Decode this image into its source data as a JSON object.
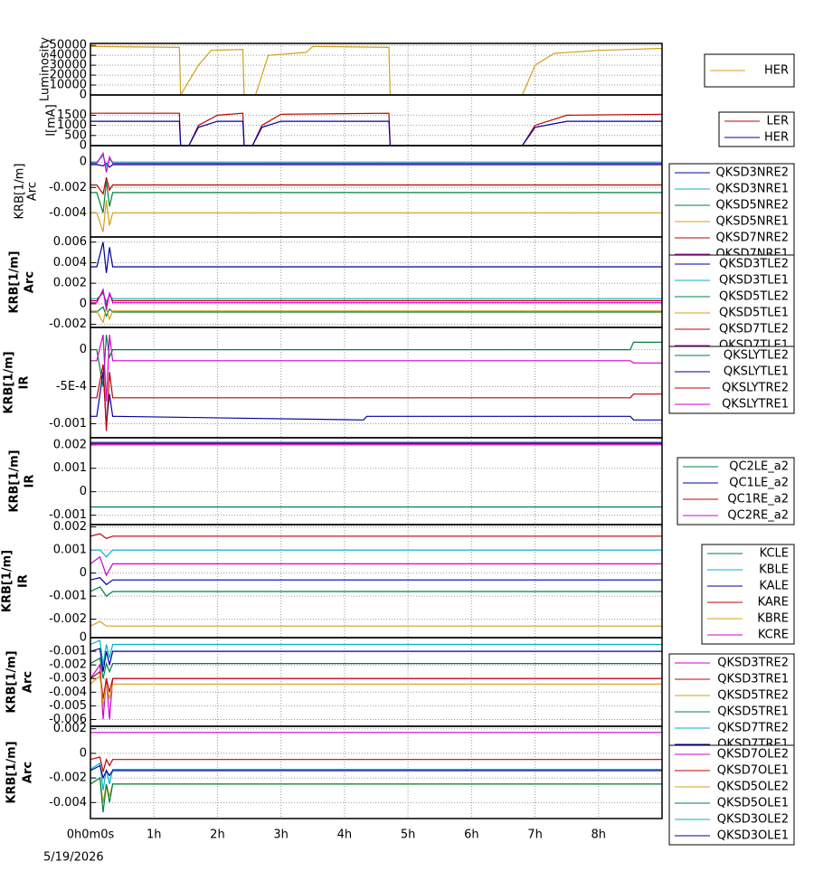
{
  "chart_data": [
    {
      "type": "line",
      "ylabel": [
        "Luminosity"
      ],
      "xlim": [
        0,
        9
      ],
      "xticks": [
        0,
        1,
        2,
        3,
        4,
        5,
        6,
        7,
        8
      ],
      "ylim": [
        0,
        52000
      ],
      "yticks": [
        0,
        10000,
        20000,
        30000,
        40000,
        50000
      ],
      "grid": true,
      "x": [
        0,
        1.4,
        1.42,
        1.7,
        1.9,
        2.4,
        2.42,
        2.6,
        2.8,
        3.4,
        3.5,
        4.7,
        4.72,
        6.8,
        7.0,
        7.3,
        8.0,
        9.0
      ],
      "series": [
        {
          "name": "HER",
          "color": "#d4a017",
          "values": [
            49000,
            48000,
            0,
            30000,
            45000,
            46000,
            0,
            0,
            40000,
            43000,
            49000,
            48000,
            0,
            0,
            30000,
            42000,
            45000,
            47000
          ]
        }
      ]
    },
    {
      "type": "line",
      "ylabel": [
        "I[mA]"
      ],
      "xlim": [
        0,
        9
      ],
      "xticks": [
        0,
        1,
        2,
        3,
        4,
        5,
        6,
        7,
        8
      ],
      "ylim": [
        0,
        2500
      ],
      "yticks": [
        0,
        500,
        1000,
        1500
      ],
      "grid": true,
      "x": [
        0,
        1.4,
        1.42,
        1.55,
        1.7,
        2.0,
        2.4,
        2.42,
        2.55,
        2.7,
        3.0,
        4.7,
        4.72,
        6.8,
        7.0,
        7.5,
        9.0
      ],
      "series": [
        {
          "name": "LER",
          "color": "#c00000",
          "values": [
            1600,
            1600,
            0,
            0,
            1000,
            1500,
            1600,
            0,
            0,
            1000,
            1550,
            1600,
            0,
            0,
            1000,
            1500,
            1550
          ]
        },
        {
          "name": "HER",
          "color": "#0000a0",
          "values": [
            1200,
            1200,
            0,
            0,
            900,
            1200,
            1200,
            0,
            0,
            900,
            1200,
            1200,
            0,
            0,
            900,
            1200,
            1200
          ]
        }
      ]
    },
    {
      "type": "line",
      "ylabel": [
        "KRB[1/m]",
        "Arc"
      ],
      "xlim": [
        0,
        9
      ],
      "xticks": [
        0,
        1,
        2,
        3,
        4,
        5,
        6,
        7,
        8
      ],
      "ylim": [
        -0.0059,
        0.0013
      ],
      "yticks": [
        0,
        -0.002,
        -0.004
      ],
      "grid": true,
      "x": [
        0,
        0.1,
        0.2,
        0.25,
        0.3,
        0.35,
        9
      ],
      "series": [
        {
          "name": "QKSD3NRE2",
          "color": "#0000a0",
          "values": [
            -0.0002,
            -0.0002,
            -0.0003,
            -0.0001,
            -0.0004,
            -0.0002,
            -0.0002
          ]
        },
        {
          "name": "QKSD3NRE1",
          "color": "#00b4c8",
          "values": [
            0,
            0,
            0.0005,
            -0.0003,
            0.0002,
            0,
            0
          ]
        },
        {
          "name": "QKSD5NRE2",
          "color": "#008040",
          "values": [
            -0.0024,
            -0.0024,
            -0.004,
            -0.0015,
            -0.0035,
            -0.0024,
            -0.0024
          ]
        },
        {
          "name": "QKSD5NRE1",
          "color": "#d4a017",
          "values": [
            -0.004,
            -0.004,
            -0.0055,
            -0.003,
            -0.005,
            -0.004,
            -0.004
          ]
        },
        {
          "name": "QKSD7NRE2",
          "color": "#c00000",
          "values": [
            -0.0018,
            -0.0018,
            -0.0025,
            -0.0012,
            -0.0022,
            -0.0018,
            -0.0018
          ]
        },
        {
          "name": "QKSD7NRE1",
          "color": "#d000d0",
          "values": [
            -0.0001,
            -0.0001,
            0.0007,
            -0.0008,
            0.0004,
            -0.0001,
            -0.0001
          ]
        }
      ]
    },
    {
      "type": "line",
      "ylabel": [
        "KRB[1/m]",
        "Arc"
      ],
      "xlim": [
        0,
        9
      ],
      "xticks": [
        0,
        1,
        2,
        3,
        4,
        5,
        6,
        7,
        8
      ],
      "ylim": [
        -0.0023,
        0.0065
      ],
      "yticks": [
        0.006,
        0.004,
        0.002,
        0,
        -0.002
      ],
      "grid": true,
      "x": [
        0,
        0.1,
        0.2,
        0.25,
        0.3,
        0.35,
        9
      ],
      "series": [
        {
          "name": "QKSD3TLE2",
          "color": "#0000a0",
          "values": [
            0.0036,
            0.0036,
            0.006,
            0.003,
            0.0055,
            0.0036,
            0.0036
          ]
        },
        {
          "name": "QKSD3TLE1",
          "color": "#00b4c8",
          "values": [
            0.0005,
            0.0005,
            0.001,
            0.0002,
            0.0008,
            0.0005,
            0.0005
          ]
        },
        {
          "name": "QKSD5TLE2",
          "color": "#008040",
          "values": [
            -0.0008,
            -0.0008,
            -0.0003,
            -0.0012,
            -0.0005,
            -0.0008,
            -0.0008
          ]
        },
        {
          "name": "QKSD5TLE1",
          "color": "#d4a017",
          "values": [
            -0.0007,
            -0.0007,
            -0.0018,
            -0.0004,
            -0.0015,
            -0.0007,
            -0.0007
          ]
        },
        {
          "name": "QKSD7TLE2",
          "color": "#c00000",
          "values": [
            0.0003,
            0.0003,
            0.0012,
            -0.0002,
            0.0009,
            0.0003,
            0.0003
          ]
        },
        {
          "name": "QKSD7TLE1",
          "color": "#d000d0",
          "values": [
            0.0001,
            0.0001,
            0.0014,
            -0.0006,
            0.0011,
            0.0001,
            0.0001
          ]
        }
      ]
    },
    {
      "type": "line",
      "ylabel": [
        "KRB[1/m]",
        "IR"
      ],
      "xlim": [
        0,
        9
      ],
      "xticks": [
        0,
        1,
        2,
        3,
        4,
        5,
        6,
        7,
        8
      ],
      "ylim": [
        -0.00119,
        0.0003
      ],
      "yticks": [
        0,
        {
          "value": -0.0005,
          "label": "-5E-4"
        },
        -0.001
      ],
      "grid": true,
      "x": [
        0,
        0.1,
        0.2,
        0.25,
        0.3,
        0.35,
        4.3,
        4.35,
        8.5,
        8.55,
        9
      ],
      "series": [
        {
          "name": "QKSLYTLE2",
          "color": "#008040",
          "values": [
            0,
            0,
            -0.0005,
            0.0002,
            -0.0001,
            0,
            0,
            0,
            0,
            0.0001,
            0.0001
          ]
        },
        {
          "name": "QKSLYTLE1",
          "color": "#0000a0",
          "values": [
            -0.0009,
            -0.0009,
            -0.0003,
            -0.001,
            -0.0006,
            -0.0009,
            -0.00095,
            -0.0009,
            -0.0009,
            -0.00095,
            -0.00095
          ]
        },
        {
          "name": "QKSLYTRE2",
          "color": "#c00000",
          "values": [
            -0.00065,
            -0.00065,
            -0.0002,
            -0.0011,
            -0.0003,
            -0.00065,
            -0.00065,
            -0.00065,
            -0.00065,
            -0.0006,
            -0.0006
          ]
        },
        {
          "name": "QKSLYTRE1",
          "color": "#d000d0",
          "values": [
            -0.00015,
            -0.00015,
            0.0002,
            -0.0007,
            0.0002,
            -0.00015,
            -0.00015,
            -0.00015,
            -0.00015,
            -0.00018,
            -0.00018
          ]
        }
      ]
    },
    {
      "type": "line",
      "ylabel": [
        "KRB[1/m]",
        "IR"
      ],
      "xlim": [
        0,
        9
      ],
      "xticks": [
        0,
        1,
        2,
        3,
        4,
        5,
        6,
        7,
        8
      ],
      "ylim": [
        -0.0014,
        0.0023
      ],
      "yticks": [
        0.002,
        0.001,
        0,
        -0.001
      ],
      "grid": true,
      "x": [
        0,
        9
      ],
      "series": [
        {
          "name": "QC2LE_a2",
          "color": "#008040",
          "values": [
            -0.00065,
            -0.00065
          ]
        },
        {
          "name": "QC1LE_a2",
          "color": "#0000a0",
          "values": [
            0.0021,
            0.0021
          ]
        },
        {
          "name": "QC1RE_a2",
          "color": "#c00000",
          "values": [
            0.00205,
            0.00205
          ]
        },
        {
          "name": "QC2RE_a2",
          "color": "#d000d0",
          "values": [
            0.002,
            0.002
          ]
        }
      ]
    },
    {
      "type": "line",
      "ylabel": [
        "KRB[1/m]",
        "IR"
      ],
      "xlim": [
        0,
        9
      ],
      "xticks": [
        0,
        1,
        2,
        3,
        4,
        5,
        6,
        7,
        8
      ],
      "ylim": [
        -0.0028,
        0.0021
      ],
      "yticks": [
        0.002,
        0.001,
        0,
        -0.001,
        -0.002
      ],
      "grid": true,
      "x": [
        0,
        0.15,
        0.25,
        0.35,
        9
      ],
      "series": [
        {
          "name": "KCLE",
          "color": "#008040",
          "values": [
            -0.0008,
            -0.0006,
            -0.001,
            -0.0008,
            -0.0008
          ]
        },
        {
          "name": "KBLE",
          "color": "#00b4c8",
          "values": [
            0.001,
            0.001,
            0.0007,
            0.001,
            0.001
          ]
        },
        {
          "name": "KALE",
          "color": "#0000a0",
          "values": [
            -0.0003,
            -0.0002,
            -0.0005,
            -0.0003,
            -0.0003
          ]
        },
        {
          "name": "KARE",
          "color": "#c00000",
          "values": [
            0.0016,
            0.0017,
            0.0015,
            0.0016,
            0.0016
          ]
        },
        {
          "name": "KBRE",
          "color": "#d4a017",
          "values": [
            -0.0023,
            -0.0021,
            -0.0023,
            -0.0023,
            -0.0023
          ]
        },
        {
          "name": "KCRE",
          "color": "#d000d0",
          "values": [
            0.0004,
            0.0007,
            -0.0001,
            0.0004,
            0.0004
          ]
        }
      ]
    },
    {
      "type": "line",
      "ylabel": [
        "KRB[1/m]",
        "Arc"
      ],
      "xlim": [
        0,
        9
      ],
      "xticks": [
        0,
        1,
        2,
        3,
        4,
        5,
        6,
        7,
        8
      ],
      "ylim": [
        -0.0065,
        0
      ],
      "yticks": [
        0,
        -0.001,
        -0.002,
        -0.003,
        -0.004,
        -0.005,
        -0.006
      ],
      "grid": true,
      "x": [
        0,
        0.15,
        0.2,
        0.25,
        0.3,
        0.35,
        9
      ],
      "series": [
        {
          "name": "QKSD3TRE2",
          "color": "#d000d0",
          "values": [
            -0.003,
            -0.002,
            -0.006,
            -0.003,
            -0.006,
            -0.003,
            -0.003
          ]
        },
        {
          "name": "QKSD3TRE1",
          "color": "#c00000",
          "values": [
            -0.003,
            -0.0025,
            -0.0045,
            -0.003,
            -0.004,
            -0.003,
            -0.003
          ]
        },
        {
          "name": "QKSD5TRE2",
          "color": "#d4a017",
          "values": [
            -0.0034,
            -0.0028,
            -0.005,
            -0.0034,
            -0.0045,
            -0.0034,
            -0.0034
          ]
        },
        {
          "name": "QKSD5TRE1",
          "color": "#008040",
          "values": [
            -0.0019,
            -0.0015,
            -0.003,
            -0.0019,
            -0.0025,
            -0.0019,
            -0.0019
          ]
        },
        {
          "name": "QKSD7TRE2",
          "color": "#00b4c8",
          "values": [
            -0.0005,
            -0.0002,
            -0.002,
            -0.0005,
            -0.0015,
            -0.0005,
            -0.0005
          ]
        },
        {
          "name": "QKSD7TRE1",
          "color": "#0000a0",
          "values": [
            -0.001,
            -0.0008,
            -0.0025,
            -0.001,
            -0.002,
            -0.001,
            -0.001
          ]
        }
      ]
    },
    {
      "type": "line",
      "ylabel": [
        "KRB[1/m]",
        "Arc"
      ],
      "xlim": [
        0,
        9
      ],
      "xticks": [
        {
          "value": 0,
          "label": "0h0m0s"
        },
        {
          "value": 1,
          "label": "1h"
        },
        {
          "value": 2,
          "label": "2h"
        },
        {
          "value": 3,
          "label": "3h"
        },
        {
          "value": 4,
          "label": "4h"
        },
        {
          "value": 5,
          "label": "5h"
        },
        {
          "value": 6,
          "label": "6h"
        },
        {
          "value": 7,
          "label": "7h"
        },
        {
          "value": 8,
          "label": "8h"
        }
      ],
      "date": "5/19/2026",
      "ylim": [
        -0.0053,
        0.0022
      ],
      "yticks": [
        0.002,
        0,
        -0.002,
        -0.004
      ],
      "grid": true,
      "x": [
        0,
        0.15,
        0.2,
        0.25,
        0.3,
        0.35,
        9
      ],
      "series": [
        {
          "name": "QKSD7OLE2",
          "color": "#d000d0",
          "values": [
            0.0017,
            0.0017,
            0.0017,
            0.0017,
            0.0017,
            0.0017,
            0.0017
          ]
        },
        {
          "name": "QKSD7OLE1",
          "color": "#c00000",
          "values": [
            -0.0005,
            -0.0003,
            -0.0015,
            -0.0005,
            -0.001,
            -0.0005,
            -0.0005
          ]
        },
        {
          "name": "QKSD5OLE2",
          "color": "#d4a017",
          "values": [
            -0.0025,
            -0.002,
            -0.004,
            -0.0025,
            -0.0035,
            -0.0025,
            -0.0025
          ]
        },
        {
          "name": "QKSD5OLE1",
          "color": "#008040",
          "values": [
            -0.0025,
            -0.002,
            -0.0048,
            -0.0025,
            -0.004,
            -0.0025,
            -0.0025
          ]
        },
        {
          "name": "QKSD3OLE2",
          "color": "#00b4c8",
          "values": [
            -0.0013,
            -0.0008,
            -0.003,
            -0.0013,
            -0.0025,
            -0.0013,
            -0.0013
          ]
        },
        {
          "name": "QKSD3OLE1",
          "color": "#0000a0",
          "values": [
            -0.0014,
            -0.001,
            -0.002,
            -0.0014,
            -0.0018,
            -0.0014,
            -0.0014
          ]
        }
      ]
    }
  ]
}
